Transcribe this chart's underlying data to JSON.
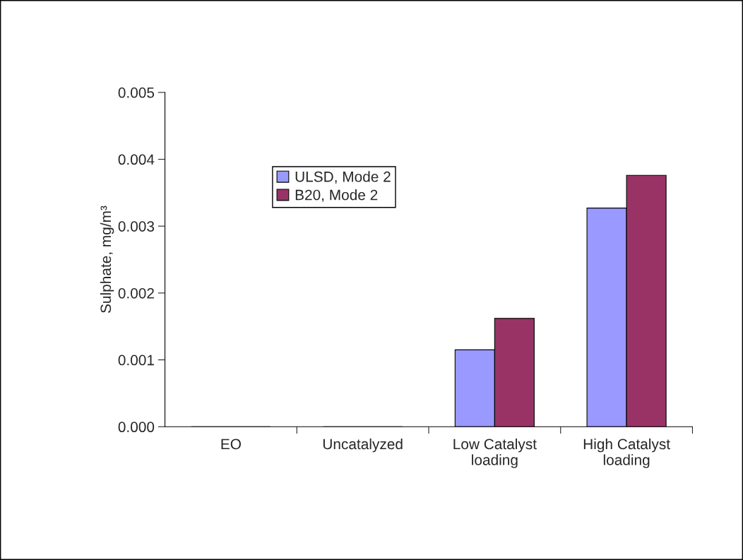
{
  "chart_data": {
    "type": "bar",
    "ylabel": "Sulphate, mg/m³",
    "categories": [
      "EO",
      "Uncatalyzed",
      "Low Catalyst\nloading",
      "High Catalyst\nloading"
    ],
    "series": [
      {
        "name": "ULSD, Mode 2",
        "color": "#9999ff",
        "values": [
          0,
          0,
          0.00115,
          0.00327
        ]
      },
      {
        "name": "B20, Mode 2",
        "color": "#993366",
        "values": [
          0,
          0,
          0.00162,
          0.00376
        ]
      }
    ],
    "ylim": [
      0,
      0.005
    ],
    "yticks": [
      {
        "value": 0,
        "label": "0.000"
      },
      {
        "value": 0.001,
        "label": "0.001"
      },
      {
        "value": 0.002,
        "label": "0.002"
      },
      {
        "value": 0.003,
        "label": "0.003"
      },
      {
        "value": 0.004,
        "label": "0.004"
      },
      {
        "value": 0.005,
        "label": "0.005"
      }
    ],
    "legend": "top left",
    "grid": false
  }
}
